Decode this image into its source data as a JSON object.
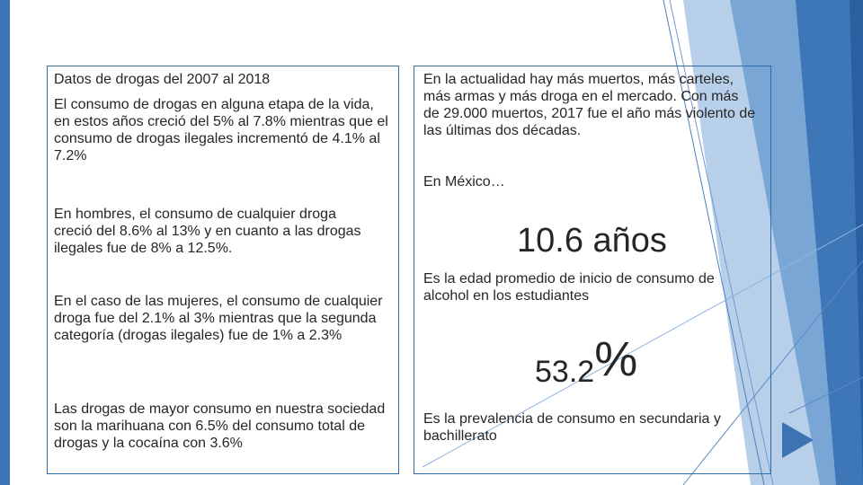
{
  "left": {
    "heading": "Datos de drogas del 2007 al 2018",
    "paragraphs": [
      "El consumo de drogas en alguna etapa de la vida, en estos años creció del 5% al 7.8% mientras que el consumo de drogas ilegales incrementó de 4.1% al 7.2%",
      "En hombres, el consumo de cualquier droga creció del 8.6% al 13% y en cuanto a las drogas ilegales fue de 8% a 12.5%.",
      "En el caso de las mujeres, el consumo de cualquier droga fue del 2.1% al 3% mientras que la segunda categoría (drogas ilegales) fue de 1% a 2.3%",
      "Las drogas de mayor consumo en nuestra sociedad son la marihuana con 6.5% del consumo total de drogas y la cocaína con 3.6%"
    ]
  },
  "right": {
    "intro": "En la actualidad hay más muertos, más carteles, más armas y más droga en el mercado. Con más de 29.000 muertos, 2017 fue el año más violento de las últimas dos décadas.",
    "country": "En México…",
    "stat1": {
      "value": "10.6 años",
      "caption": "Es la edad promedio de inicio de consumo de alcohol en los estudiantes"
    },
    "stat2": {
      "number": "53.2",
      "unit": "%",
      "caption": "Es la prevalencia de consumo en secundaria y bachillerato"
    }
  },
  "colors": {
    "accent_dark": "#2a5fa0",
    "accent_light": "#8db3dc",
    "border": "#2f6ea9",
    "arrow": "#3b73b3"
  }
}
